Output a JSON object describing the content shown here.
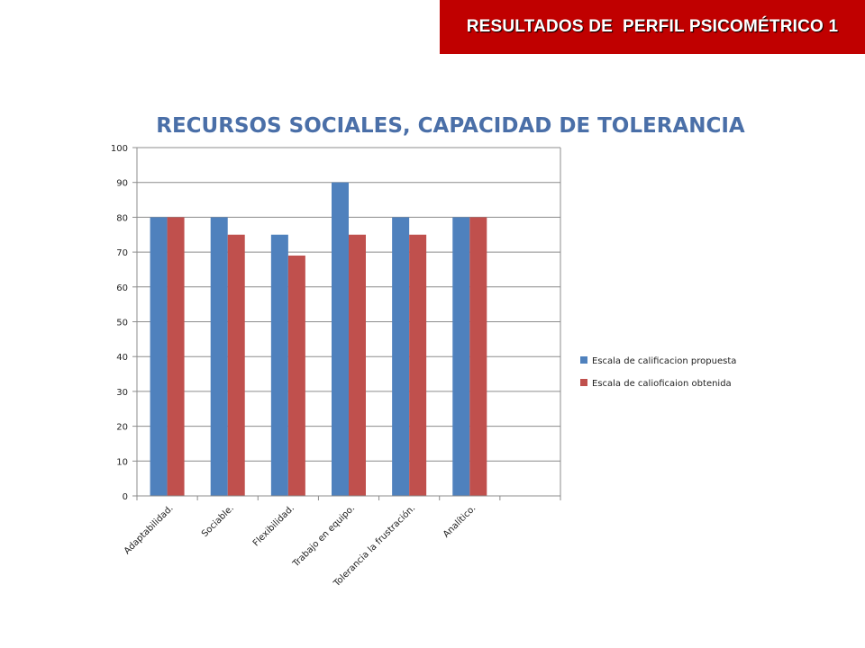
{
  "slide": {
    "banner_title": "RESULTADOS DE  PERFIL PSICOMÉTRICO 1"
  },
  "colors": {
    "banner": "#c00000",
    "title": "#4a6fa8",
    "series_1": "#4f81bd",
    "series_2": "#c0504d",
    "grid": "#8c8c8c",
    "text": "#222222"
  },
  "chart_data": {
    "type": "bar",
    "title": "RECURSOS SOCIALES, CAPACIDAD DE TOLERANCIA",
    "xlabel": "",
    "ylabel": "",
    "categories": [
      "Adaptabilidad.",
      "Sociable.",
      "Flexibilidad.",
      "Trabajo en equipo.",
      "Tolerancia la frustración.",
      "Analítico.",
      ""
    ],
    "series": [
      {
        "name": "Escala de calificacion propuesta",
        "values": [
          80,
          80,
          75,
          90,
          80,
          80,
          null
        ]
      },
      {
        "name": "Escala de calioficaion obtenida",
        "values": [
          80,
          75,
          69,
          75,
          75,
          80,
          null
        ]
      }
    ],
    "ylim": [
      0,
      100
    ],
    "yticks": [
      0,
      10,
      20,
      30,
      40,
      50,
      60,
      70,
      80,
      90,
      100
    ],
    "grid": true,
    "legend_position": "right"
  }
}
